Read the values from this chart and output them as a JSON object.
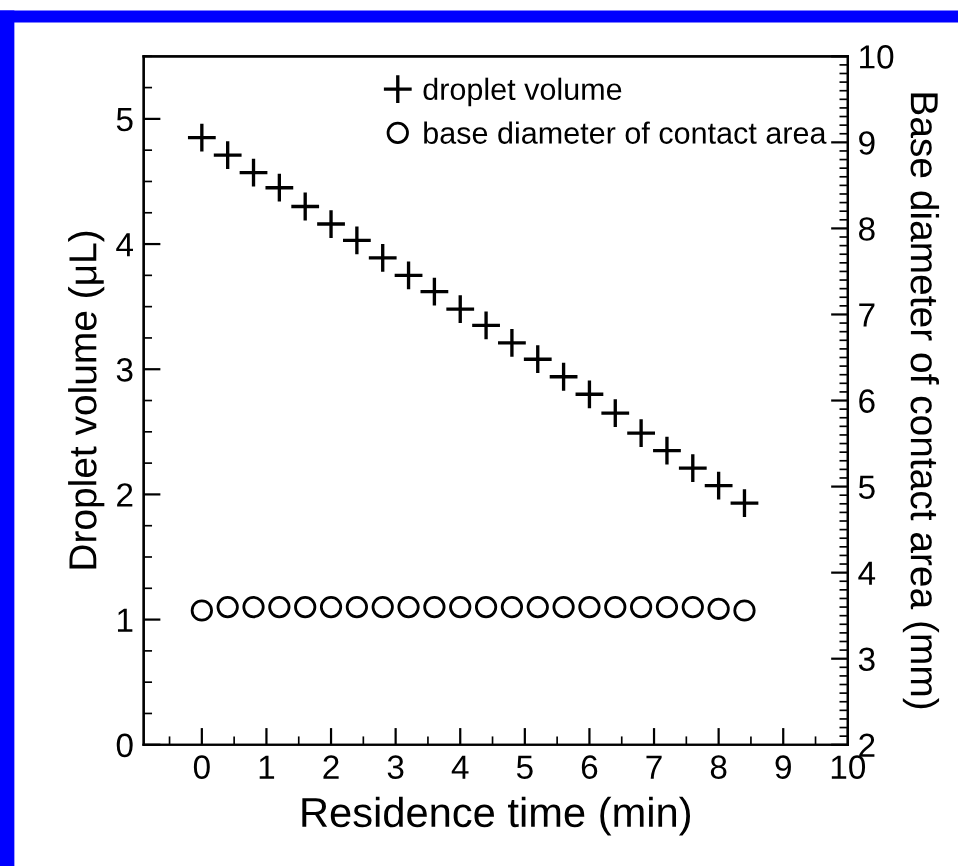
{
  "chart_data": {
    "type": "scatter",
    "xlabel": "Residence time (min)",
    "ylabel": "Droplet volume (μL)",
    "y2label": "Base diameter of contact area (mm)",
    "x": [
      0,
      0.4,
      0.8,
      1.2,
      1.6,
      2.0,
      2.4,
      2.8,
      3.2,
      3.6,
      4.0,
      4.4,
      4.8,
      5.2,
      5.6,
      6.0,
      6.4,
      6.8,
      7.2,
      7.6,
      8.0,
      8.4
    ],
    "series": [
      {
        "name": "droplet volume",
        "color": "#000000",
        "marker": "cross",
        "values": [
          4.85,
          4.71,
          4.57,
          4.45,
          4.3,
          4.16,
          4.03,
          3.89,
          3.75,
          3.62,
          3.48,
          3.35,
          3.21,
          3.08,
          2.94,
          2.8,
          2.65,
          2.49,
          2.35,
          2.21,
          2.07,
          1.93
        ]
      },
      {
        "name": "base diameter of contact area",
        "color": "#000000",
        "marker": "circle",
        "axis": "y2",
        "values": [
          3.56,
          3.6,
          3.6,
          3.6,
          3.6,
          3.6,
          3.6,
          3.6,
          3.6,
          3.6,
          3.6,
          3.6,
          3.6,
          3.6,
          3.6,
          3.6,
          3.6,
          3.6,
          3.6,
          3.6,
          3.58,
          3.56
        ]
      }
    ],
    "xlim": [
      -0.9,
      10
    ],
    "xticks": [
      0,
      1,
      2,
      3,
      4,
      5,
      6,
      7,
      8,
      9,
      10
    ],
    "ylim": [
      0,
      5.5
    ],
    "yticks": [
      0,
      1,
      2,
      3,
      4,
      5
    ],
    "y2lim": [
      2,
      10
    ],
    "y2ticks": [
      2,
      3,
      4,
      5,
      6,
      7,
      8,
      9,
      10
    ],
    "legend": "top right",
    "grid": false
  }
}
